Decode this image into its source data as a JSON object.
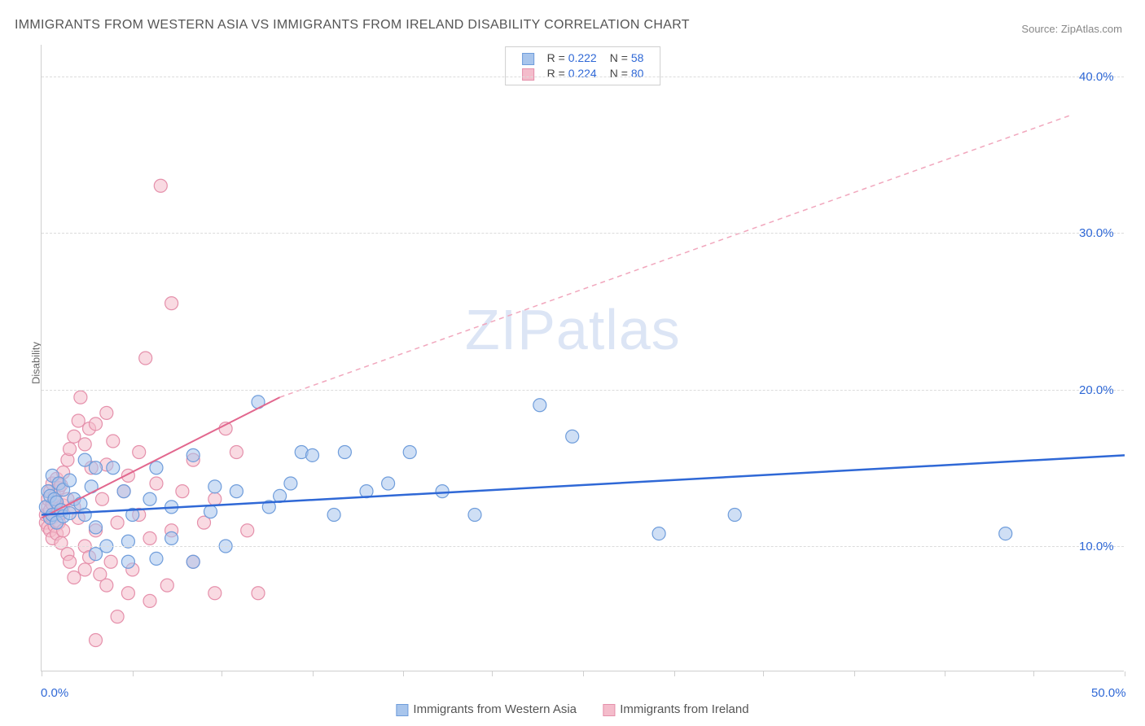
{
  "title": "IMMIGRANTS FROM WESTERN ASIA VS IMMIGRANTS FROM IRELAND DISABILITY CORRELATION CHART",
  "source_label": "Source:",
  "source_name": "ZipAtlas.com",
  "ylabel": "Disability",
  "watermark": "ZIPatlas",
  "chart": {
    "type": "scatter",
    "xlim": [
      0.0,
      50.0
    ],
    "ylim": [
      2.0,
      42.0
    ],
    "x_ticks": [
      0,
      4.2,
      8.3,
      12.5,
      16.7,
      20.8,
      25.0,
      29.2,
      33.3,
      37.5,
      41.7,
      45.8,
      50.0
    ],
    "x_tick_labels": {
      "0": "0.0%",
      "50": "50.0%"
    },
    "y_gridlines": [
      10.0,
      20.0,
      30.0,
      40.0
    ],
    "y_tick_labels": {
      "10": "10.0%",
      "20": "20.0%",
      "30": "30.0%",
      "40": "40.0%"
    },
    "grid_color": "#dcdcdc",
    "axis_color": "#cfcfcf",
    "axis_label_color": "#2f68d6",
    "background_color": "#ffffff",
    "marker_radius": 8,
    "marker_opacity": 0.55,
    "series": [
      {
        "name": "Immigrants from Western Asia",
        "short": "western_asia",
        "color_fill": "#a8c5ec",
        "color_stroke": "#6f9ddb",
        "R": 0.222,
        "N": 58,
        "trend_solid": {
          "x1": 0.0,
          "y1": 12.0,
          "x2": 50.0,
          "y2": 15.8
        },
        "trend_line_width": 2.5,
        "points": [
          [
            0.2,
            12.5
          ],
          [
            0.3,
            13.5
          ],
          [
            0.4,
            11.8
          ],
          [
            0.4,
            13.2
          ],
          [
            0.5,
            12.0
          ],
          [
            0.5,
            14.5
          ],
          [
            0.6,
            13.0
          ],
          [
            0.7,
            11.5
          ],
          [
            0.7,
            12.8
          ],
          [
            0.8,
            14.0
          ],
          [
            0.9,
            12.3
          ],
          [
            1.0,
            13.6
          ],
          [
            1.0,
            11.9
          ],
          [
            1.3,
            14.2
          ],
          [
            1.3,
            12.1
          ],
          [
            1.5,
            13.0
          ],
          [
            1.8,
            12.7
          ],
          [
            2.0,
            15.5
          ],
          [
            2.0,
            12.0
          ],
          [
            2.3,
            13.8
          ],
          [
            2.5,
            9.5
          ],
          [
            2.5,
            15.0
          ],
          [
            2.5,
            11.2
          ],
          [
            3.0,
            10.0
          ],
          [
            3.3,
            15.0
          ],
          [
            3.8,
            13.5
          ],
          [
            4.0,
            9.0
          ],
          [
            4.0,
            10.3
          ],
          [
            4.2,
            12.0
          ],
          [
            5.0,
            13.0
          ],
          [
            5.3,
            15.0
          ],
          [
            5.3,
            9.2
          ],
          [
            6.0,
            10.5
          ],
          [
            6.0,
            12.5
          ],
          [
            7.0,
            9.0
          ],
          [
            7.0,
            15.8
          ],
          [
            7.8,
            12.2
          ],
          [
            8.0,
            13.8
          ],
          [
            8.5,
            10.0
          ],
          [
            9.0,
            13.5
          ],
          [
            10.0,
            19.2
          ],
          [
            10.5,
            12.5
          ],
          [
            11.0,
            13.2
          ],
          [
            11.5,
            14.0
          ],
          [
            12.0,
            16.0
          ],
          [
            12.5,
            15.8
          ],
          [
            13.5,
            12.0
          ],
          [
            14.0,
            16.0
          ],
          [
            15.0,
            13.5
          ],
          [
            16.0,
            14.0
          ],
          [
            17.0,
            16.0
          ],
          [
            18.5,
            13.5
          ],
          [
            20.0,
            12.0
          ],
          [
            23.0,
            19.0
          ],
          [
            24.5,
            17.0
          ],
          [
            28.5,
            10.8
          ],
          [
            32.0,
            12.0
          ],
          [
            44.5,
            10.8
          ]
        ]
      },
      {
        "name": "Immigrants from Ireland",
        "short": "ireland",
        "color_fill": "#f4bccb",
        "color_stroke": "#e590ab",
        "R": 0.224,
        "N": 80,
        "trend_solid": {
          "x1": 0.0,
          "y1": 11.8,
          "x2": 11.0,
          "y2": 19.5
        },
        "trend_dashed": {
          "x1": 11.0,
          "y1": 19.5,
          "x2": 47.5,
          "y2": 37.5
        },
        "trend_line_width": 2,
        "points": [
          [
            0.2,
            11.5
          ],
          [
            0.2,
            12.0
          ],
          [
            0.3,
            12.5
          ],
          [
            0.3,
            11.2
          ],
          [
            0.3,
            13.0
          ],
          [
            0.4,
            12.3
          ],
          [
            0.4,
            11.0
          ],
          [
            0.4,
            13.5
          ],
          [
            0.5,
            12.7
          ],
          [
            0.5,
            11.8
          ],
          [
            0.5,
            14.0
          ],
          [
            0.5,
            10.5
          ],
          [
            0.6,
            12.0
          ],
          [
            0.6,
            13.2
          ],
          [
            0.6,
            11.3
          ],
          [
            0.7,
            12.8
          ],
          [
            0.7,
            14.3
          ],
          [
            0.7,
            10.8
          ],
          [
            0.8,
            12.4
          ],
          [
            0.8,
            13.7
          ],
          [
            0.8,
            11.5
          ],
          [
            0.9,
            12.1
          ],
          [
            0.9,
            10.2
          ],
          [
            0.9,
            13.9
          ],
          [
            1.0,
            12.6
          ],
          [
            1.0,
            14.7
          ],
          [
            1.0,
            11.0
          ],
          [
            1.2,
            9.5
          ],
          [
            1.2,
            13.0
          ],
          [
            1.2,
            15.5
          ],
          [
            1.3,
            9.0
          ],
          [
            1.3,
            16.2
          ],
          [
            1.5,
            12.5
          ],
          [
            1.5,
            17.0
          ],
          [
            1.5,
            8.0
          ],
          [
            1.7,
            11.8
          ],
          [
            1.7,
            18.0
          ],
          [
            1.8,
            19.5
          ],
          [
            2.0,
            10.0
          ],
          [
            2.0,
            16.5
          ],
          [
            2.0,
            8.5
          ],
          [
            2.2,
            17.5
          ],
          [
            2.2,
            9.3
          ],
          [
            2.3,
            15.0
          ],
          [
            2.5,
            17.8
          ],
          [
            2.5,
            4.0
          ],
          [
            2.5,
            11.0
          ],
          [
            2.7,
            8.2
          ],
          [
            2.8,
            13.0
          ],
          [
            3.0,
            15.2
          ],
          [
            3.0,
            18.5
          ],
          [
            3.0,
            7.5
          ],
          [
            3.2,
            9.0
          ],
          [
            3.3,
            16.7
          ],
          [
            3.5,
            11.5
          ],
          [
            3.5,
            5.5
          ],
          [
            3.8,
            13.5
          ],
          [
            4.0,
            7.0
          ],
          [
            4.0,
            14.5
          ],
          [
            4.2,
            8.5
          ],
          [
            4.5,
            12.0
          ],
          [
            4.5,
            16.0
          ],
          [
            4.8,
            22.0
          ],
          [
            5.0,
            10.5
          ],
          [
            5.0,
            6.5
          ],
          [
            5.3,
            14.0
          ],
          [
            5.5,
            33.0
          ],
          [
            5.8,
            7.5
          ],
          [
            6.0,
            11.0
          ],
          [
            6.0,
            25.5
          ],
          [
            6.5,
            13.5
          ],
          [
            7.0,
            9.0
          ],
          [
            7.0,
            15.5
          ],
          [
            7.5,
            11.5
          ],
          [
            8.0,
            13.0
          ],
          [
            8.0,
            7.0
          ],
          [
            8.5,
            17.5
          ],
          [
            9.0,
            16.0
          ],
          [
            9.5,
            11.0
          ],
          [
            10.0,
            7.0
          ]
        ]
      }
    ]
  },
  "legend_top": {
    "R_label": "R =",
    "N_label": "N ="
  },
  "legend_bottom": {
    "items": [
      {
        "label": "Immigrants from Western Asia",
        "color_fill": "#a8c5ec",
        "color_stroke": "#6f9ddb"
      },
      {
        "label": "Immigrants from Ireland",
        "color_fill": "#f4bccb",
        "color_stroke": "#e590ab"
      }
    ]
  }
}
